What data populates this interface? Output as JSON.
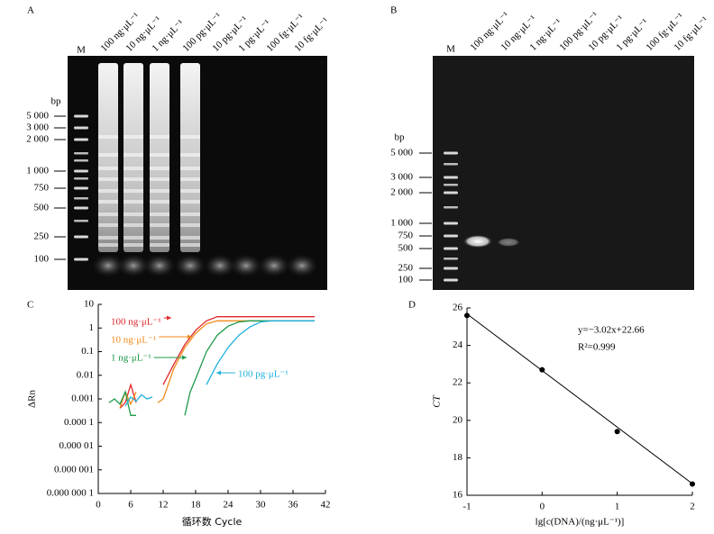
{
  "gels": [
    {
      "panel": "A",
      "marker_lane": "M",
      "size_unit": "bp",
      "lanes": [
        "100 ng·μL⁻¹",
        "10 ng·μL⁻¹",
        "1 ng·μL⁻¹",
        "100 pg·μL⁻¹",
        "10 pg·μL⁻¹",
        "1 pg·μL⁻¹",
        "100 fg·μL⁻¹",
        "10 fg·μL⁻¹"
      ],
      "ladder": [
        "5 000",
        "3 000",
        "2 000",
        "1 000",
        "750",
        "500",
        "250",
        "100"
      ]
    },
    {
      "panel": "B",
      "marker_lane": "M",
      "size_unit": "bp",
      "lanes": [
        "100 ng·μL⁻¹",
        "10 ng·μL⁻¹",
        "1 ng·μL⁻¹",
        "100 pg·μL⁻¹",
        "10 pg·μL⁻¹",
        "1 pg·μL⁻¹",
        "100 fg·μL⁻¹",
        "10 fg·μL⁻¹"
      ],
      "ladder": [
        "5 000",
        "3 000",
        "2 000",
        "1 000",
        "750",
        "500",
        "250",
        "100"
      ]
    }
  ],
  "chart_data": [
    {
      "type": "line",
      "panel": "C",
      "xlabel": "循环数 Cycle",
      "ylabel": "ΔRn",
      "yscale": "log",
      "xlim": [
        0,
        42
      ],
      "xticks": [
        0,
        6,
        12,
        18,
        24,
        30,
        36,
        42
      ],
      "ylim": [
        1e-07,
        10
      ],
      "yticks": [
        10,
        1,
        0.1,
        0.01,
        0.001,
        {
          "value": 0.0001,
          "label": "0.000 1"
        },
        {
          "value": 1e-05,
          "label": "0.000 01"
        },
        {
          "value": 1e-06,
          "label": "0.000 001"
        },
        {
          "value": 1e-07,
          "label": "0.000 000 1"
        }
      ],
      "series": [
        {
          "name": "100 ng·μL⁻¹",
          "color": "#e0262b",
          "x": [
            4,
            5,
            6,
            7,
            10,
            12,
            14,
            16,
            18,
            20,
            22,
            26,
            40
          ],
          "values": [
            0.0004,
            0.0007,
            0.004,
            0.0007,
            null,
            0.004,
            0.03,
            0.2,
            0.8,
            2,
            3,
            3,
            3
          ]
        },
        {
          "name": "10 ng·μL⁻¹",
          "color": "#f08a1c",
          "x": [
            4,
            5,
            6,
            7,
            10,
            11,
            12,
            14,
            16,
            18,
            20,
            22,
            24,
            40
          ],
          "values": [
            0.0004,
            0.002,
            0.0006,
            0.002,
            null,
            0.0007,
            0.001,
            0.02,
            0.15,
            0.6,
            1.5,
            2,
            2,
            2
          ]
        },
        {
          "name": "1 ng·μL⁻¹",
          "color": "#1f9a4a",
          "x": [
            2,
            3,
            4,
            5,
            6,
            7,
            10,
            16,
            17,
            18,
            20,
            22,
            24,
            26,
            28,
            40
          ],
          "values": [
            0.0007,
            0.001,
            0.0006,
            0.002,
            0.0002,
            0.0002,
            null,
            0.0002,
            0.002,
            0.007,
            0.1,
            0.5,
            1.2,
            1.8,
            2,
            2
          ]
        },
        {
          "name": "100 pg·μL⁻¹",
          "color": "#1fb0dc",
          "x": [
            5,
            6,
            7,
            8,
            9,
            10,
            12,
            20,
            22,
            24,
            26,
            28,
            30,
            32,
            40
          ],
          "values": [
            0.0005,
            0.0012,
            0.0008,
            0.0015,
            0.001,
            0.0012,
            null,
            0.004,
            0.03,
            0.15,
            0.5,
            1.1,
            1.8,
            2,
            2
          ]
        }
      ]
    },
    {
      "type": "scatter",
      "panel": "D",
      "xlabel": "lg[c(DNA)/(ng·μL⁻¹)]",
      "ylabel": "CT",
      "xlim": [
        -1,
        2
      ],
      "xticks": [
        -1,
        0,
        1,
        2
      ],
      "ylim": [
        16,
        26
      ],
      "yticks": [
        16,
        18,
        20,
        22,
        24,
        26
      ],
      "x": [
        -1,
        0,
        1,
        2
      ],
      "values": [
        25.6,
        22.7,
        19.4,
        16.6
      ],
      "color": "#000000",
      "fit_line": {
        "slope": -3.02,
        "intercept": 22.66
      },
      "annotations": [
        "y=−3.02x+22.66",
        "R²=0.999"
      ]
    }
  ]
}
